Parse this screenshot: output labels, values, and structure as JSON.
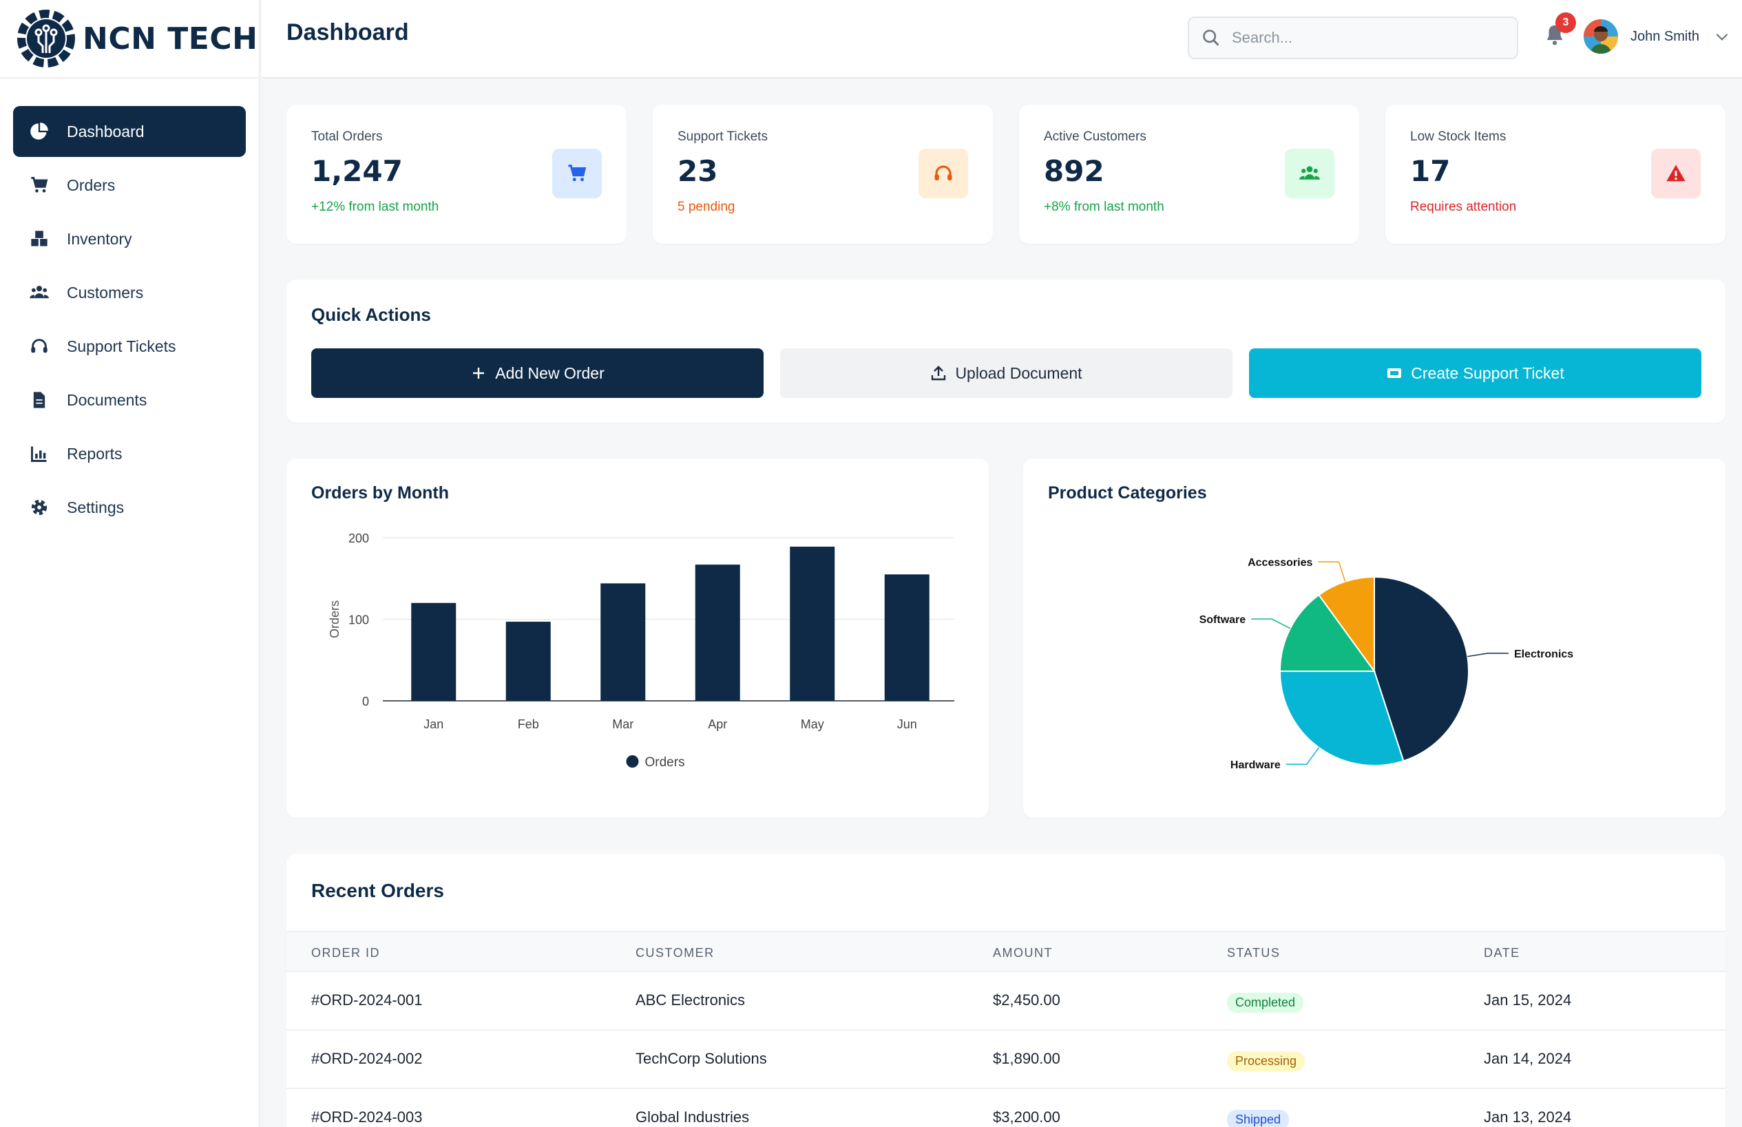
{
  "brand": {
    "name": "NCN TECH"
  },
  "sidebar": {
    "items": [
      {
        "label": "Dashboard",
        "icon": "pie-chart-icon"
      },
      {
        "label": "Orders",
        "icon": "cart-icon"
      },
      {
        "label": "Inventory",
        "icon": "boxes-icon"
      },
      {
        "label": "Customers",
        "icon": "users-icon"
      },
      {
        "label": "Support Tickets",
        "icon": "headset-icon"
      },
      {
        "label": "Documents",
        "icon": "document-icon"
      },
      {
        "label": "Reports",
        "icon": "bar-chart-icon"
      },
      {
        "label": "Settings",
        "icon": "gear-icon"
      }
    ]
  },
  "header": {
    "title": "Dashboard",
    "search_placeholder": "Search...",
    "notification_count": "3",
    "user_name": "John Smith"
  },
  "stats": [
    {
      "label": "Total Orders",
      "value": "1,247",
      "sub": "+12% from last month",
      "sub_color": "#16a34a",
      "icon": "cart-icon",
      "icon_bg": "#dbeafe",
      "icon_color": "#2563eb"
    },
    {
      "label": "Support Tickets",
      "value": "23",
      "sub": "5 pending",
      "sub_color": "#ea580c",
      "icon": "headset-icon",
      "icon_bg": "#ffedd5",
      "icon_color": "#ea580c"
    },
    {
      "label": "Active Customers",
      "value": "892",
      "sub": "+8% from last month",
      "sub_color": "#16a34a",
      "icon": "users-icon",
      "icon_bg": "#dcfce7",
      "icon_color": "#16a34a"
    },
    {
      "label": "Low Stock Items",
      "value": "17",
      "sub": "Requires attention",
      "sub_color": "#dc2626",
      "icon": "warning-icon",
      "icon_bg": "#fee2e2",
      "icon_color": "#dc2626"
    }
  ],
  "quick_actions": {
    "title": "Quick Actions",
    "add_order": "Add New Order",
    "upload": "Upload Document",
    "create_ticket": "Create Support Ticket"
  },
  "orders_chart": {
    "title": "Orders by Month"
  },
  "categories_chart": {
    "title": "Product Categories"
  },
  "chart_data": [
    {
      "type": "bar",
      "title": "Orders by Month",
      "categories": [
        "Jan",
        "Feb",
        "Mar",
        "Apr",
        "May",
        "Jun"
      ],
      "series": [
        {
          "name": "Orders",
          "values": [
            120,
            97,
            144,
            167,
            189,
            155
          ]
        }
      ],
      "ylabel": "Orders",
      "ylim": [
        0,
        200
      ],
      "yticks": [
        0,
        100,
        200
      ],
      "grid": true,
      "legend": "bottom",
      "color": "#0f2a47"
    },
    {
      "type": "pie",
      "title": "Product Categories",
      "labels": [
        "Electronics",
        "Hardware",
        "Software",
        "Accessories"
      ],
      "values": [
        45,
        30,
        15,
        10
      ],
      "colors": [
        "#0f2a47",
        "#06b6d4",
        "#10b981",
        "#f59e0b"
      ]
    }
  ],
  "recent_orders": {
    "title": "Recent Orders",
    "columns": [
      "ORDER ID",
      "CUSTOMER",
      "AMOUNT",
      "STATUS",
      "DATE"
    ],
    "rows": [
      {
        "id": "#ORD-2024-001",
        "customer": "ABC Electronics",
        "amount": "$2,450.00",
        "status": "Completed",
        "date": "Jan 15, 2024"
      },
      {
        "id": "#ORD-2024-002",
        "customer": "TechCorp Solutions",
        "amount": "$1,890.00",
        "status": "Processing",
        "date": "Jan 14, 2024"
      },
      {
        "id": "#ORD-2024-003",
        "customer": "Global Industries",
        "amount": "$3,200.00",
        "status": "Shipped",
        "date": "Jan 13, 2024"
      }
    ]
  }
}
